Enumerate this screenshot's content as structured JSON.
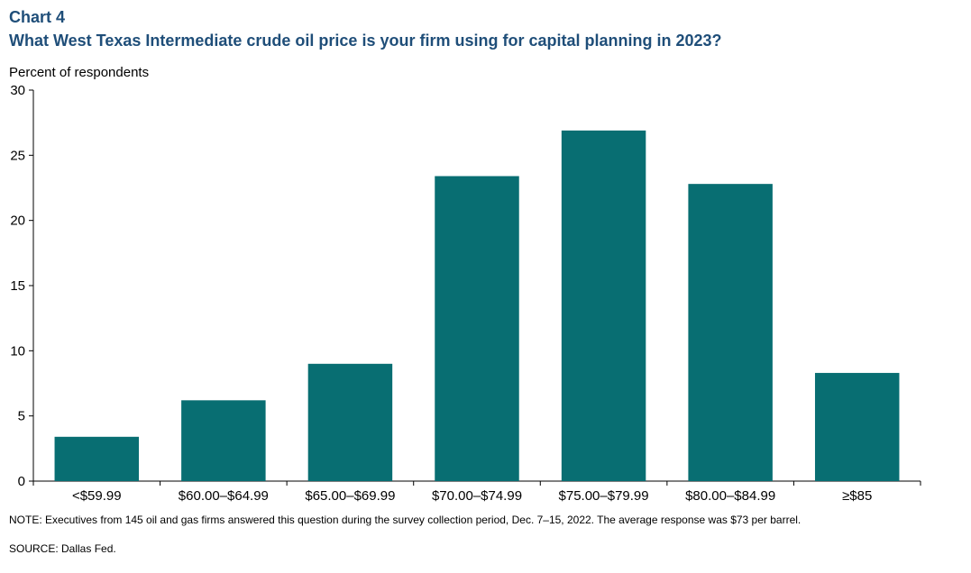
{
  "header": {
    "chart_number": "Chart 4",
    "title": "What West Texas Intermediate crude oil price is your firm using for capital planning in 2023?"
  },
  "footer": {
    "note": "NOTE: Executives from 145 oil and gas firms answered this question during the survey collection period, Dec. 7–15, 2022. The average response was $73 per barrel.",
    "source": "SOURCE: Dallas Fed."
  },
  "colors": {
    "bar": "#086e72",
    "title": "#1f4e79",
    "axis": "#000000"
  },
  "chart_data": {
    "type": "bar",
    "title": "What West Texas Intermediate crude oil price is your firm using for capital planning in 2023?",
    "xlabel": "",
    "ylabel": "Percent of respondents",
    "categories": [
      "<$59.99",
      "$60.00–$64.99",
      "$65.00–$69.99",
      "$70.00–$74.99",
      "$75.00–$79.99",
      "$80.00–$84.99",
      "≥$85"
    ],
    "values": [
      3.4,
      6.2,
      9.0,
      23.4,
      26.9,
      22.8,
      8.3
    ],
    "ylim": [
      0,
      30
    ],
    "yticks": [
      0,
      5,
      10,
      15,
      20,
      25,
      30
    ],
    "grid": false,
    "legend": "none"
  }
}
